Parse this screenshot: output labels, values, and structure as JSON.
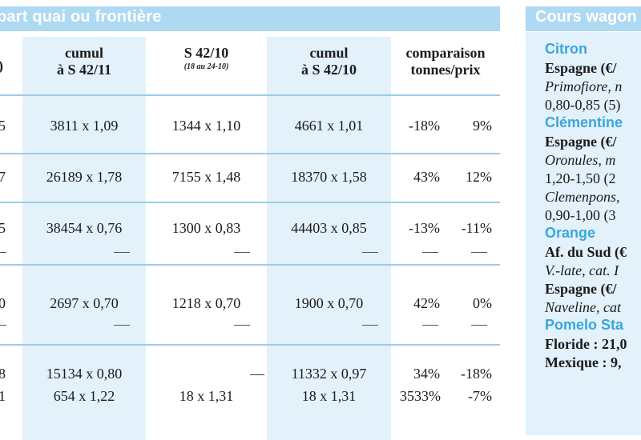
{
  "left_table": {
    "title": "part quai ou frontière",
    "headers": {
      "col_edge": ")",
      "col1": [
        "cumul",
        "à S 42/11"
      ],
      "col2_main": "S 42/10",
      "col2_sub": "(18 au 24-10)",
      "col3": [
        "cumul",
        "à S 42/10"
      ],
      "col4": [
        "comparaison",
        "tonnes/prix"
      ]
    },
    "rows": [
      {
        "edge": "5",
        "c1": "3811 x 1,09",
        "c2": "1344 x 1,10",
        "c3": "4661 x 1,01",
        "pct": "-18%",
        "prix": "9%"
      },
      {
        "edge": "7",
        "c1": "26189 x 1,78",
        "c2": "7155 x 1,48",
        "c3": "18370 x 1,58",
        "pct": "43%",
        "prix": "12%"
      },
      {
        "edge": "5",
        "c1": "38454 x 0,76",
        "c2": "1300 x 0,83",
        "c3": "44403 x 0,85",
        "pct": "-13%",
        "prix": "-11%"
      },
      {
        "edge": "0",
        "c1": "2697 x 0,70",
        "c2": "1218 x 0,70",
        "c3": "1900 x 0,70",
        "pct": "42%",
        "prix": "0%"
      },
      {
        "edge": "8",
        "c1": "15134 x 0,80",
        "c2": "—",
        "c3": "11332 x 0,97",
        "pct": "34%",
        "prix": "-18%"
      },
      {
        "edge": "1",
        "c1": "654 x 1,22",
        "c2": "18 x 1,31",
        "c3": "18 x 1,31",
        "pct": "3533%",
        "prix": "-7%"
      }
    ],
    "dash_glyph": "—"
  },
  "right_panel": {
    "title": "Cours wagon",
    "lines": [
      {
        "style": "sec",
        "text": "Citron"
      },
      {
        "style": "bold",
        "text": "Espagne (€/"
      },
      {
        "style": "it",
        "text": "Primofiore, n"
      },
      {
        "style": "",
        "text": "0,80-0,85 (5)"
      },
      {
        "style": "sec",
        "text": "Clémentine"
      },
      {
        "style": "bold",
        "text": "Espagne (€/"
      },
      {
        "style": "it",
        "text": "Oronules, m"
      },
      {
        "style": "",
        "text": "1,20-1,50 (2"
      },
      {
        "style": "it",
        "text": "Clemenpons,"
      },
      {
        "style": "",
        "text": "0,90-1,00 (3"
      },
      {
        "style": "sec",
        "text": "Orange"
      },
      {
        "style": "bold",
        "text": "Af. du Sud (€"
      },
      {
        "style": "it",
        "text": "V.-late, cat. I"
      },
      {
        "style": "bold",
        "text": "Espagne (€/"
      },
      {
        "style": "it",
        "text": "Naveline, cat"
      },
      {
        "style": "sec",
        "text": "Pomelo Sta"
      },
      {
        "style": "bold",
        "text": "Floride : 21,0"
      },
      {
        "style": "bold",
        "text": "Mexique : 9,"
      }
    ]
  }
}
